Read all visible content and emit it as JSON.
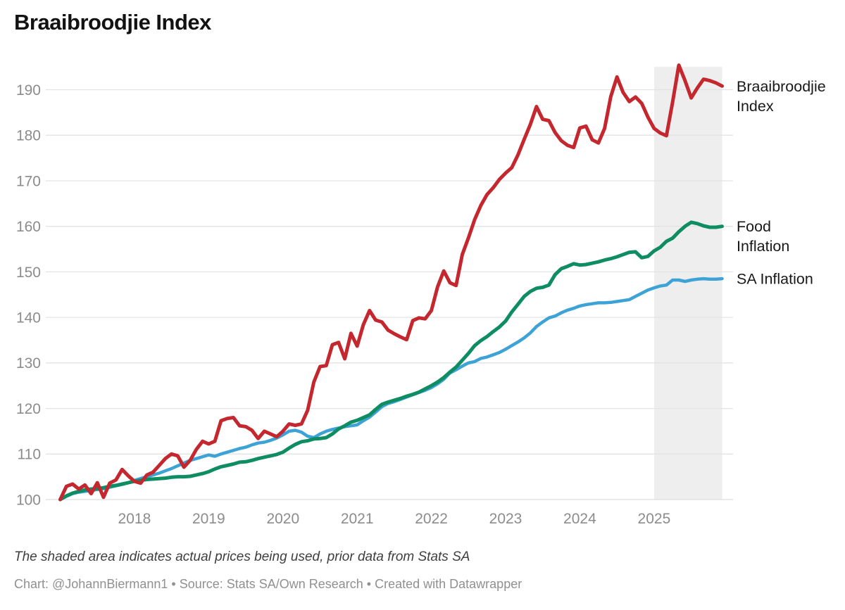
{
  "title": "Braaibroodjie Index",
  "note": "The shaded area indicates actual prices being used, prior data from Stats SA",
  "footer": "Chart: @JohannBiermann1 • Source: Stats SA/Own Research • Created with Datawrapper",
  "colors": {
    "background": "#ffffff",
    "grid": "#e3e3e3",
    "baseline": "#dddddd",
    "axis_text": "#8c8c8c",
    "label_text": "#191919",
    "shade": "#eeeeee",
    "title_text": "#121212",
    "note_text": "#3e3e3e",
    "footer_text": "#909090"
  },
  "chart_data": {
    "type": "line",
    "title": "Braaibroodjie Index",
    "frequency": "monthly",
    "x_start": "2017-01",
    "x_end": "2025-12",
    "grid": "horizontal",
    "ylim": [
      98,
      196
    ],
    "y_ticks": [
      100,
      110,
      120,
      130,
      140,
      150,
      160,
      170,
      180,
      190
    ],
    "x_ticks": [
      {
        "label": "2018",
        "month_index": 12
      },
      {
        "label": "2019",
        "month_index": 24
      },
      {
        "label": "2020",
        "month_index": 36
      },
      {
        "label": "2021",
        "month_index": 48
      },
      {
        "label": "2022",
        "month_index": 60
      },
      {
        "label": "2023",
        "month_index": 72
      },
      {
        "label": "2024",
        "month_index": 84
      },
      {
        "label": "2025",
        "month_index": 96
      }
    ],
    "shaded_region": {
      "from": "2025-01",
      "to": "2025-12",
      "from_month_index": 96,
      "to_month_index": 107,
      "meaning": "actual prices being used"
    },
    "legend_position": "right-of-line-ends",
    "series": [
      {
        "name": "Braaibroodjie Index",
        "label_lines": [
          "Braaibroodjie",
          "Index"
        ],
        "color": "#c4272e",
        "stroke_width": 5,
        "values": [
          100.0,
          102.9,
          103.4,
          102.3,
          103.2,
          101.3,
          103.7,
          100.5,
          103.6,
          104.3,
          106.6,
          105.2,
          104.0,
          103.6,
          105.4,
          106.0,
          107.5,
          109.0,
          110.0,
          109.6,
          107.1,
          108.6,
          111.0,
          112.8,
          112.2,
          112.8,
          117.3,
          117.8,
          118.0,
          116.2,
          116.0,
          115.2,
          113.4,
          115.0,
          114.4,
          113.8,
          115.0,
          116.6,
          116.3,
          116.6,
          119.6,
          125.8,
          129.2,
          129.4,
          134.0,
          134.5,
          130.9,
          136.5,
          133.7,
          138.4,
          141.5,
          139.4,
          139.0,
          137.2,
          136.4,
          135.7,
          135.1,
          139.3,
          139.9,
          139.7,
          141.5,
          146.7,
          150.2,
          147.6,
          147.0,
          153.8,
          157.5,
          161.5,
          164.6,
          167.0,
          168.5,
          170.3,
          171.7,
          172.9,
          175.7,
          179.1,
          182.4,
          186.3,
          183.5,
          183.2,
          180.6,
          178.8,
          177.8,
          177.3,
          181.6,
          182.0,
          179.0,
          178.3,
          181.5,
          188.5,
          192.8,
          189.4,
          187.4,
          188.4,
          187.0,
          184.0,
          181.5,
          180.5,
          179.9,
          187.3,
          195.4,
          192.0,
          188.2,
          190.4,
          192.3,
          192.0,
          191.5,
          190.8
        ]
      },
      {
        "name": "Food Inflation",
        "label_lines": [
          "Food",
          "Inflation"
        ],
        "color": "#0e8c62",
        "stroke_width": 5,
        "values": [
          100.0,
          100.8,
          101.4,
          101.8,
          102.1,
          102.3,
          102.4,
          102.6,
          102.9,
          103.1,
          103.4,
          103.7,
          104.0,
          104.2,
          104.4,
          104.5,
          104.6,
          104.7,
          104.9,
          105.0,
          105.0,
          105.1,
          105.4,
          105.7,
          106.1,
          106.7,
          107.2,
          107.5,
          107.8,
          108.2,
          108.3,
          108.6,
          109.0,
          109.3,
          109.6,
          109.9,
          110.4,
          111.3,
          112.1,
          112.7,
          112.9,
          113.3,
          113.4,
          113.6,
          114.4,
          115.5,
          116.2,
          117.0,
          117.4,
          118.0,
          118.6,
          119.8,
          120.9,
          121.4,
          121.8,
          122.2,
          122.7,
          123.1,
          123.6,
          124.3,
          125.0,
          125.8,
          126.8,
          128.0,
          129.1,
          130.6,
          132.1,
          133.8,
          134.9,
          135.8,
          136.9,
          137.9,
          139.2,
          141.2,
          142.9,
          144.6,
          145.7,
          146.4,
          146.6,
          147.1,
          149.4,
          150.7,
          151.2,
          151.8,
          151.5,
          151.6,
          151.9,
          152.2,
          152.6,
          152.9,
          153.3,
          153.8,
          154.3,
          154.4,
          153.1,
          153.4,
          154.6,
          155.4,
          156.7,
          157.4,
          158.8,
          160.0,
          160.9,
          160.6,
          160.1,
          159.8,
          159.8,
          160.0
        ]
      },
      {
        "name": "SA Inflation",
        "label_lines": [
          "SA Inflation"
        ],
        "color": "#3da2d6",
        "stroke_width": 4.5,
        "values": [
          100.0,
          100.7,
          101.3,
          101.6,
          101.8,
          102.0,
          102.2,
          102.4,
          102.7,
          103.0,
          103.3,
          103.7,
          104.2,
          104.6,
          105.0,
          105.4,
          105.8,
          106.3,
          106.8,
          107.4,
          108.0,
          108.6,
          109.0,
          109.4,
          109.8,
          109.5,
          110.0,
          110.4,
          110.8,
          111.2,
          111.5,
          112.0,
          112.4,
          112.6,
          113.0,
          113.5,
          114.2,
          115.0,
          115.2,
          114.8,
          113.9,
          113.6,
          114.4,
          115.0,
          115.4,
          115.7,
          116.0,
          116.2,
          116.4,
          117.3,
          118.1,
          119.2,
          120.4,
          121.1,
          121.5,
          122.0,
          122.5,
          123.0,
          123.5,
          124.0,
          124.6,
          125.4,
          126.4,
          127.8,
          128.5,
          129.3,
          130.0,
          130.3,
          131.0,
          131.3,
          131.8,
          132.3,
          133.0,
          133.8,
          134.6,
          135.5,
          136.6,
          138.0,
          139.0,
          139.9,
          140.3,
          141.0,
          141.6,
          142.0,
          142.5,
          142.8,
          143.0,
          143.2,
          143.2,
          143.3,
          143.5,
          143.7,
          143.9,
          144.6,
          145.3,
          146.0,
          146.5,
          146.9,
          147.1,
          148.2,
          148.2,
          147.9,
          148.2,
          148.4,
          148.5,
          148.4,
          148.4,
          148.5
        ]
      }
    ]
  }
}
